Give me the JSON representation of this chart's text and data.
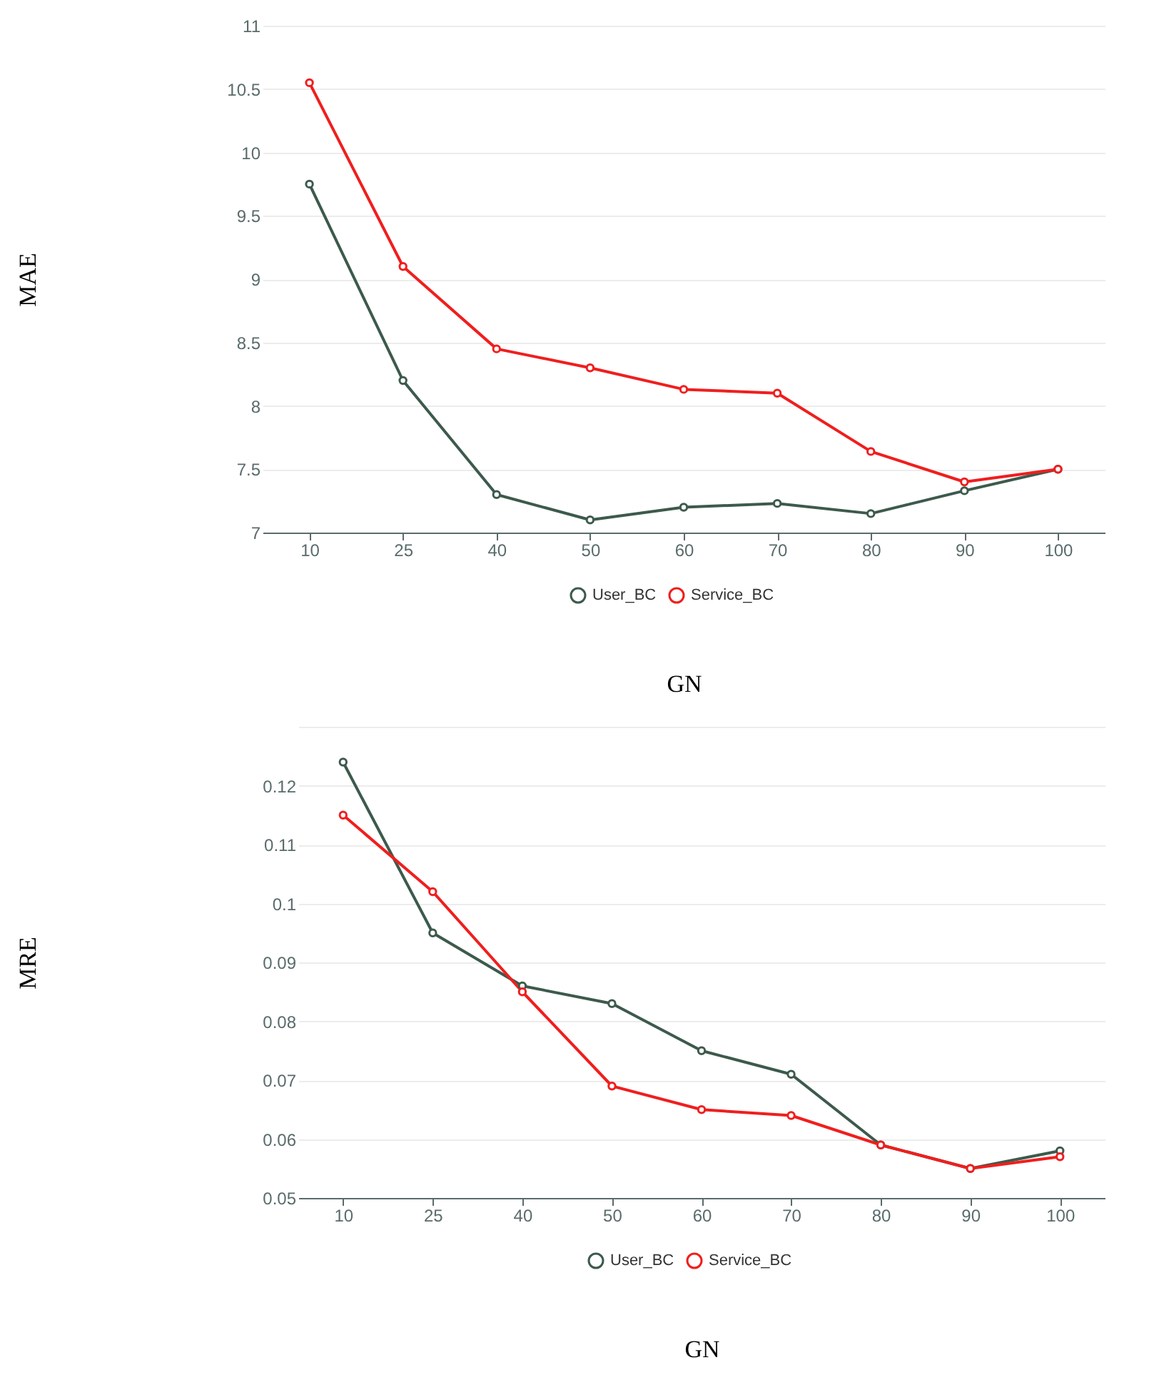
{
  "chart_data": [
    {
      "type": "line",
      "xlabel": "GN",
      "ylabel": "MAE",
      "categories": [
        "10",
        "25",
        "40",
        "50",
        "60",
        "70",
        "80",
        "90",
        "100"
      ],
      "series": [
        {
          "name": "User_BC",
          "color": "#3d5a4c",
          "values": [
            9.75,
            8.2,
            7.3,
            7.1,
            7.2,
            7.23,
            7.15,
            7.33,
            7.5
          ]
        },
        {
          "name": "Service_BC",
          "color": "#f01e1e",
          "values": [
            10.55,
            9.1,
            8.45,
            8.3,
            8.13,
            8.1,
            7.64,
            7.4,
            7.5
          ]
        }
      ],
      "ylim": [
        7,
        11
      ],
      "yticks": [
        7,
        7.5,
        8,
        8.5,
        9,
        9.5,
        10,
        10.5,
        11
      ],
      "grid": "y",
      "legend": "bottom",
      "marker": "circle"
    },
    {
      "type": "line",
      "xlabel": "GN",
      "ylabel": "MRE",
      "categories": [
        "10",
        "25",
        "40",
        "50",
        "60",
        "70",
        "80",
        "90",
        "100"
      ],
      "series": [
        {
          "name": "User_BC",
          "color": "#3d5a4c",
          "values": [
            0.124,
            0.095,
            0.086,
            0.083,
            0.075,
            0.071,
            0.059,
            0.055,
            0.058
          ]
        },
        {
          "name": "Service_BC",
          "color": "#f01e1e",
          "values": [
            0.115,
            0.102,
            0.085,
            0.069,
            0.065,
            0.064,
            0.059,
            0.055,
            0.057
          ]
        }
      ],
      "ylim": [
        0.05,
        0.13
      ],
      "yticks": [
        0.05,
        0.06,
        0.07,
        0.08,
        0.09,
        0.1,
        0.11,
        0.12,
        {
          "value": 0.13,
          "label": null
        }
      ],
      "grid": "y",
      "legend": "bottom",
      "marker": "circle"
    }
  ]
}
